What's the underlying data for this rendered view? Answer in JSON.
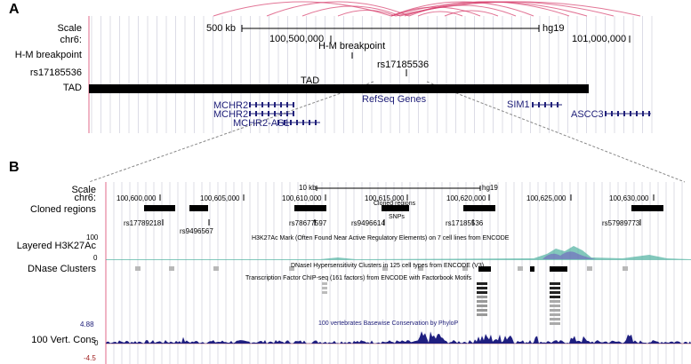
{
  "panel_a": {
    "letter": "A",
    "labels": {
      "scale": "Scale",
      "chr": "chr6:",
      "hm": "H-M breakpoint",
      "rs": "rs17185536",
      "tad": "TAD"
    },
    "scale_text": "500 kb",
    "hg": "hg19",
    "coord1": "100,500,000",
    "coord2": "101,000,000",
    "hm_text": "H-M breakpoint",
    "rs_text": "rs17185536",
    "tad_text": "TAD",
    "refseq": "RefSeq Genes",
    "genes": [
      "MCHR2",
      "MCHR2",
      "MCHR2-AS1",
      "SIM1",
      "ASCC3"
    ]
  },
  "panel_b": {
    "letter": "B",
    "labels": {
      "scale": "Scale",
      "chr": "chr6:",
      "cloned": "Cloned regions",
      "h3k": "Layered H3K27Ac",
      "dnase": "DNase Clusters",
      "cons": "100 Vert. Cons"
    },
    "scale_text": "10 kb",
    "hg": "hg19",
    "coords": [
      "100,600,000",
      "100,605,000",
      "100,610,000",
      "100,615,000",
      "100,620,000",
      "100,625,000",
      "100,630,000"
    ],
    "cloned_track_title": "Cloned regions",
    "snps_title": "SNPs",
    "snps": [
      "rs17789218",
      "rs9496567",
      "rs78677597",
      "rs9496614",
      "rs17185536",
      "rs57989773"
    ],
    "h3k_max": "100",
    "h3k_min": "0",
    "h3k_title": "H3K27Ac Mark (Often Found Near Active Regulatory Elements) on 7 cell lines from ENCODE",
    "dnase_title": "DNaseI Hypersensitivity Clusters in 125 cell types from ENCODE (V3)",
    "tf_title": "Transcription Factor ChIP-seq (161 factors) from ENCODE with Factorbook Motifs",
    "cons_max": "4.88",
    "cons_zero": "0",
    "cons_min": "-4.5",
    "cons_title": "100 vertebrates Basewise Conservation by PhyloP"
  },
  "colors": {
    "arc": "#d63a6a",
    "gene": "#20207a",
    "cons": "#1f1f80",
    "tad": "#000000"
  }
}
